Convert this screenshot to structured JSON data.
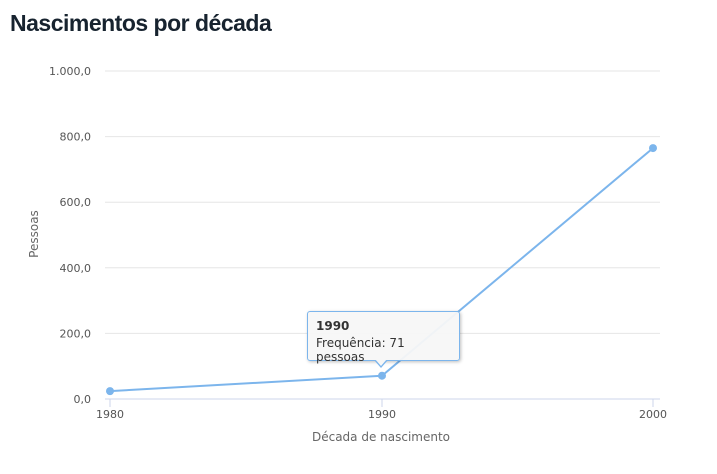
{
  "title": "Nascimentos por década",
  "chart_data": {
    "type": "line",
    "title": "Nascimentos por década",
    "xlabel": "Década de nascimento",
    "ylabel": "Pessoas",
    "categories": [
      "1980",
      "1990",
      "2000"
    ],
    "series": [
      {
        "values": [
          24,
          71,
          765
        ],
        "color": "#7cb5ec"
      }
    ],
    "ylim": [
      0,
      1000
    ],
    "yticks": [
      0,
      200,
      400,
      600,
      800,
      1000
    ],
    "ytick_labels": [
      "0,0",
      "200,0",
      "400,0",
      "600,0",
      "800,0",
      "1.000,0"
    ],
    "grid": true,
    "tooltip": {
      "title": "1990",
      "text": "Frequência: 71 pessoas"
    }
  }
}
